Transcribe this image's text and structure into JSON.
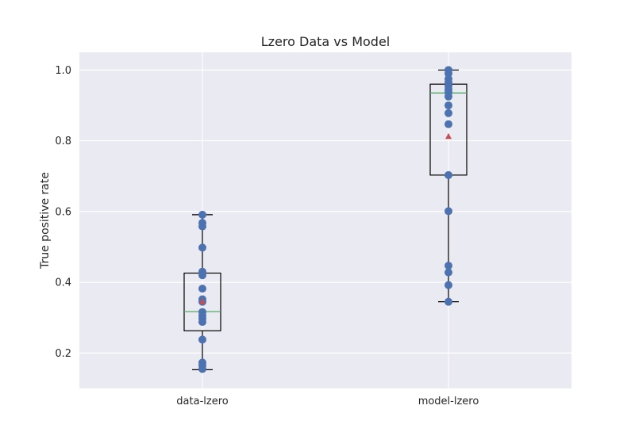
{
  "chart_data": {
    "type": "box",
    "title": "Lzero Data vs Model",
    "xlabel": "",
    "ylabel": "True positive rate",
    "ylim": [
      0.1,
      1.05
    ],
    "yticks": [
      0.2,
      0.4,
      0.6,
      0.8,
      1.0
    ],
    "ytick_labels": [
      "0.2",
      "0.4",
      "0.6",
      "0.8",
      "1.0"
    ],
    "grid": true,
    "categories": [
      "data-lzero",
      "model-lzero"
    ],
    "boxes": [
      {
        "category": "data-lzero",
        "whisker_low": 0.153,
        "q1": 0.263,
        "median": 0.317,
        "q3": 0.426,
        "whisker_high": 0.591,
        "mean": 0.345,
        "points": [
          0.591,
          0.568,
          0.558,
          0.498,
          0.43,
          0.42,
          0.382,
          0.352,
          0.345,
          0.316,
          0.306,
          0.298,
          0.288,
          0.238,
          0.173,
          0.165,
          0.155
        ]
      },
      {
        "category": "model-lzero",
        "whisker_low": 0.345,
        "q1": 0.703,
        "median": 0.935,
        "q3": 0.96,
        "whisker_high": 1.0,
        "mean": 0.812,
        "points": [
          1.0,
          0.99,
          0.975,
          0.965,
          0.955,
          0.945,
          0.937,
          0.925,
          0.9,
          0.878,
          0.847,
          0.703,
          0.601,
          0.447,
          0.428,
          0.392,
          0.345
        ]
      }
    ],
    "colors": {
      "background": "#eaeaf2",
      "grid": "#ffffff",
      "points": "#4c72b0",
      "box": "#000000",
      "median": "#55a868",
      "mean": "#c44e52"
    }
  }
}
